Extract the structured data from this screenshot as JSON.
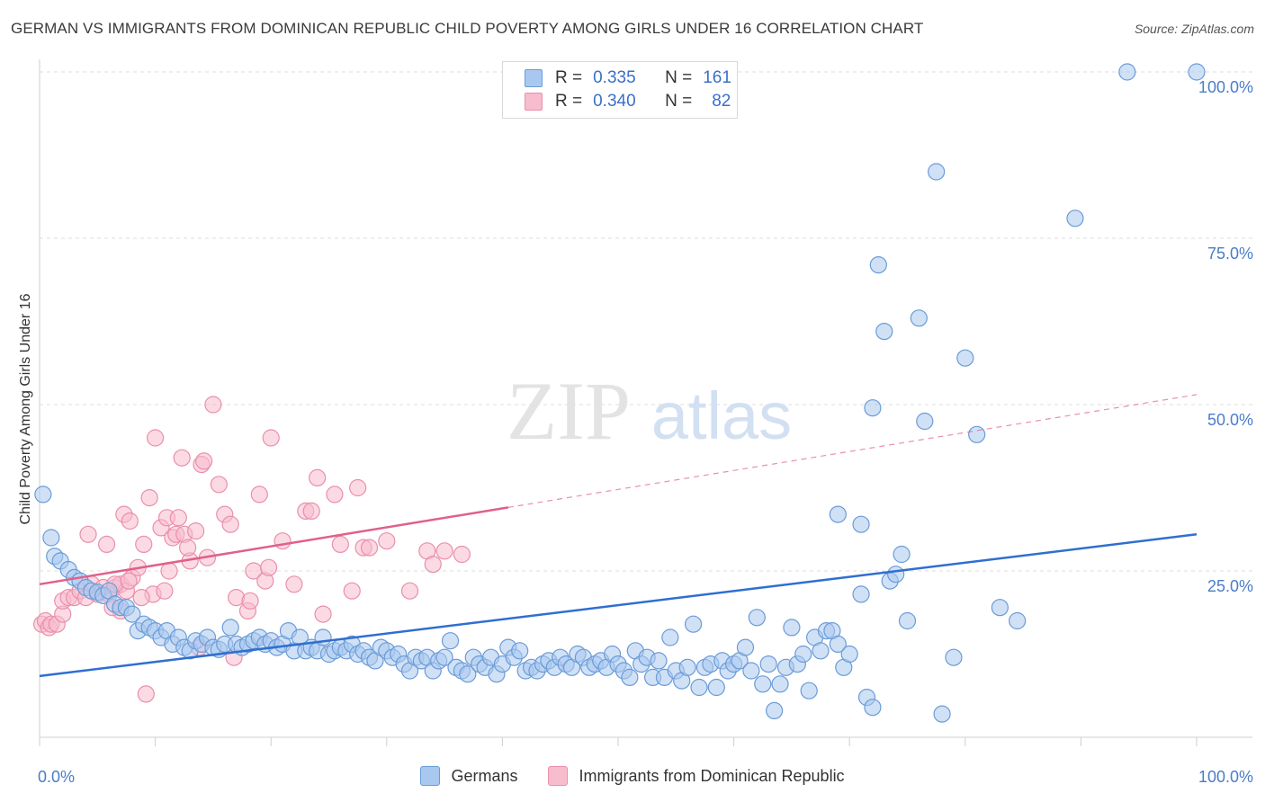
{
  "title": "GERMAN VS IMMIGRANTS FROM DOMINICAN REPUBLIC CHILD POVERTY AMONG GIRLS UNDER 16 CORRELATION CHART",
  "source": "Source: ZipAtlas.com",
  "watermark": {
    "zip": "ZIP",
    "atlas": "atlas"
  },
  "legend": {
    "r_label": "R =",
    "n_label": "N =",
    "series": [
      {
        "r": "0.335",
        "n": "161"
      },
      {
        "r": "0.340",
        "n": "82"
      }
    ]
  },
  "bottom_legend": [
    "Germans",
    "Immigrants from Dominican Republic"
  ],
  "colors": {
    "blue_fill": "#a9c8ef",
    "blue_stroke": "#6a9bd8",
    "blue_line": "#2f6fd0",
    "pink_fill": "#f7bccd",
    "pink_stroke": "#ea8fab",
    "pink_line": "#e0608a",
    "axis_label": "#4a7cc9"
  },
  "chart_data": {
    "type": "scatter",
    "title": "GERMAN VS IMMIGRANTS FROM DOMINICAN REPUBLIC CHILD POVERTY AMONG GIRLS UNDER 16 CORRELATION CHART",
    "xlabel": "",
    "ylabel": "Child Poverty Among Girls Under 16",
    "xlim": [
      0,
      100
    ],
    "ylim": [
      0,
      100
    ],
    "x_tick_labels": [
      "0.0%",
      "100.0%"
    ],
    "y_tick_labels": [
      "25.0%",
      "50.0%",
      "75.0%",
      "100.0%"
    ],
    "y_ticks": [
      25,
      50,
      75,
      100
    ],
    "legend_position": "top-center",
    "grid": true,
    "series": [
      {
        "name": "Germans",
        "color": "#6a9bd8",
        "trend": {
          "x": [
            0,
            100
          ],
          "y": [
            9.2,
            30.5
          ],
          "solid_until": 100
        },
        "points": [
          [
            0.3,
            36.5
          ],
          [
            1,
            30
          ],
          [
            1.3,
            27.2
          ],
          [
            1.8,
            26.5
          ],
          [
            2.5,
            25.2
          ],
          [
            3,
            24
          ],
          [
            3.5,
            23.5
          ],
          [
            4,
            22.5
          ],
          [
            4.5,
            22
          ],
          [
            5,
            21.8
          ],
          [
            5.5,
            21.3
          ],
          [
            6,
            22
          ],
          [
            6.5,
            20
          ],
          [
            7,
            19.5
          ],
          [
            7.5,
            19.5
          ],
          [
            8,
            18.5
          ],
          [
            8.5,
            16
          ],
          [
            9,
            17
          ],
          [
            9.5,
            16.5
          ],
          [
            10,
            16
          ],
          [
            10.5,
            15
          ],
          [
            11,
            16
          ],
          [
            11.5,
            14
          ],
          [
            12,
            15
          ],
          [
            12.5,
            13.5
          ],
          [
            13,
            13
          ],
          [
            13.5,
            14.5
          ],
          [
            14,
            14
          ],
          [
            14.5,
            15
          ],
          [
            15,
            13.5
          ],
          [
            15.5,
            13.2
          ],
          [
            16,
            14
          ],
          [
            16.5,
            16.5
          ],
          [
            17,
            14
          ],
          [
            17.5,
            13.5
          ],
          [
            18,
            14
          ],
          [
            18.5,
            14.5
          ],
          [
            19,
            15
          ],
          [
            19.5,
            14
          ],
          [
            20,
            14.5
          ],
          [
            20.5,
            13.5
          ],
          [
            21,
            14
          ],
          [
            21.5,
            16
          ],
          [
            22,
            13
          ],
          [
            22.5,
            15
          ],
          [
            23,
            13
          ],
          [
            23.5,
            13.5
          ],
          [
            24,
            13
          ],
          [
            24.5,
            15
          ],
          [
            25,
            12.5
          ],
          [
            25.5,
            13
          ],
          [
            26,
            13.5
          ],
          [
            26.5,
            13
          ],
          [
            27,
            14
          ],
          [
            27.5,
            12.5
          ],
          [
            28,
            13
          ],
          [
            28.5,
            12
          ],
          [
            29,
            11.5
          ],
          [
            29.5,
            13.5
          ],
          [
            30,
            13
          ],
          [
            30.5,
            12
          ],
          [
            31,
            12.5
          ],
          [
            31.5,
            11
          ],
          [
            32,
            10
          ],
          [
            32.5,
            12
          ],
          [
            33,
            11.5
          ],
          [
            33.5,
            12
          ],
          [
            34,
            10
          ],
          [
            34.5,
            11.5
          ],
          [
            35,
            12
          ],
          [
            35.5,
            14.5
          ],
          [
            36,
            10.5
          ],
          [
            36.5,
            10
          ],
          [
            37,
            9.5
          ],
          [
            37.5,
            12
          ],
          [
            38,
            11
          ],
          [
            38.5,
            10.5
          ],
          [
            39,
            12
          ],
          [
            39.5,
            9.5
          ],
          [
            40,
            11
          ],
          [
            40.5,
            13.5
          ],
          [
            41,
            12
          ],
          [
            41.5,
            13
          ],
          [
            42,
            10
          ],
          [
            42.5,
            10.5
          ],
          [
            43,
            10
          ],
          [
            43.5,
            11
          ],
          [
            44,
            11.5
          ],
          [
            44.5,
            10.5
          ],
          [
            45,
            12
          ],
          [
            45.5,
            11
          ],
          [
            46,
            10.5
          ],
          [
            46.5,
            12.5
          ],
          [
            47,
            12
          ],
          [
            47.5,
            10.5
          ],
          [
            48,
            11
          ],
          [
            48.5,
            11.5
          ],
          [
            49,
            10.5
          ],
          [
            49.5,
            12.5
          ],
          [
            50,
            11
          ],
          [
            50.5,
            10
          ],
          [
            51,
            9
          ],
          [
            51.5,
            13
          ],
          [
            52,
            11
          ],
          [
            52.5,
            12
          ],
          [
            53,
            9
          ],
          [
            53.5,
            11.5
          ],
          [
            54,
            9
          ],
          [
            54.5,
            15
          ],
          [
            55,
            10
          ],
          [
            55.5,
            8.5
          ],
          [
            56,
            10.5
          ],
          [
            56.5,
            17
          ],
          [
            57,
            7.5
          ],
          [
            57.5,
            10.5
          ],
          [
            58,
            11
          ],
          [
            58.5,
            7.5
          ],
          [
            59,
            11.5
          ],
          [
            59.5,
            10
          ],
          [
            60,
            11
          ],
          [
            60.5,
            11.5
          ],
          [
            61,
            13.5
          ],
          [
            61.5,
            10
          ],
          [
            62,
            18
          ],
          [
            62.5,
            8
          ],
          [
            63,
            11
          ],
          [
            63.5,
            4
          ],
          [
            64,
            8
          ],
          [
            64.5,
            10.5
          ],
          [
            65,
            16.5
          ],
          [
            65.5,
            11
          ],
          [
            66,
            12.5
          ],
          [
            66.5,
            7
          ],
          [
            67,
            15
          ],
          [
            67.5,
            13
          ],
          [
            68,
            16
          ],
          [
            68.5,
            16
          ],
          [
            69,
            14
          ],
          [
            69.5,
            10.5
          ],
          [
            70,
            12.5
          ],
          [
            69,
            33.5
          ],
          [
            71,
            32
          ],
          [
            71,
            21.5
          ],
          [
            71.5,
            6
          ],
          [
            72,
            4.5
          ],
          [
            72.5,
            71
          ],
          [
            73,
            61
          ],
          [
            73.5,
            23.5
          ],
          [
            72,
            49.5
          ],
          [
            74,
            24.5
          ],
          [
            74.5,
            27.5
          ],
          [
            75,
            17.5
          ],
          [
            76,
            63
          ],
          [
            76.5,
            47.5
          ],
          [
            77.5,
            85
          ],
          [
            78,
            3.5
          ],
          [
            79,
            12
          ],
          [
            80,
            57
          ],
          [
            81,
            45.5
          ],
          [
            83,
            19.5
          ],
          [
            84.5,
            17.5
          ],
          [
            89.5,
            78
          ],
          [
            94,
            100
          ],
          [
            100,
            100
          ]
        ]
      },
      {
        "name": "Immigrants from Dominican Republic",
        "color": "#ea8fab",
        "trend": {
          "x": [
            0,
            100
          ],
          "y": [
            23,
            51.5
          ],
          "solid_until": 40.5
        },
        "points": [
          [
            0.2,
            17
          ],
          [
            0.5,
            17.5
          ],
          [
            0.8,
            16.5
          ],
          [
            1,
            17
          ],
          [
            1.5,
            17
          ],
          [
            2,
            18.5
          ],
          [
            2,
            20.5
          ],
          [
            2.5,
            21
          ],
          [
            3,
            21
          ],
          [
            3.5,
            22
          ],
          [
            4,
            21
          ],
          [
            4.5,
            23
          ],
          [
            5,
            21.5
          ],
          [
            5.5,
            22.5
          ],
          [
            6,
            21.5
          ],
          [
            6.5,
            22.5
          ],
          [
            7,
            19
          ],
          [
            7,
            23
          ],
          [
            7.5,
            22
          ],
          [
            8,
            24
          ],
          [
            4.2,
            30.5
          ],
          [
            5.8,
            29
          ],
          [
            6.5,
            23
          ],
          [
            7.3,
            33.5
          ],
          [
            7.8,
            32.5
          ],
          [
            8.5,
            25.5
          ],
          [
            9,
            29
          ],
          [
            9.5,
            36
          ],
          [
            9.8,
            21.5
          ],
          [
            10,
            45
          ],
          [
            10.5,
            31.5
          ],
          [
            11,
            33
          ],
          [
            11.2,
            25
          ],
          [
            11.5,
            30
          ],
          [
            11.8,
            30.5
          ],
          [
            12,
            33
          ],
          [
            12.3,
            42
          ],
          [
            12.5,
            30.5
          ],
          [
            13,
            26.5
          ],
          [
            13.5,
            31
          ],
          [
            14,
            41
          ],
          [
            14.5,
            27
          ],
          [
            14.2,
            41.5
          ],
          [
            15,
            50
          ],
          [
            15.5,
            38
          ],
          [
            16,
            33.5
          ],
          [
            16.5,
            32
          ],
          [
            17,
            21
          ],
          [
            18,
            19
          ],
          [
            18.5,
            25
          ],
          [
            19,
            36.5
          ],
          [
            19.5,
            23.5
          ],
          [
            20,
            45
          ],
          [
            21,
            29.5
          ],
          [
            22,
            23
          ],
          [
            23,
            34
          ],
          [
            23.5,
            34
          ],
          [
            24,
            39
          ],
          [
            24.5,
            18.5
          ],
          [
            25.5,
            36.5
          ],
          [
            26,
            29
          ],
          [
            27,
            22
          ],
          [
            27.5,
            37.5
          ],
          [
            28,
            28.5
          ],
          [
            28.5,
            28.5
          ],
          [
            30,
            29.5
          ],
          [
            32,
            22
          ],
          [
            33.5,
            28
          ],
          [
            34,
            26
          ],
          [
            35,
            28
          ],
          [
            36.5,
            27.5
          ],
          [
            6.3,
            19.5
          ],
          [
            7.7,
            23.5
          ],
          [
            8.8,
            21
          ],
          [
            9.2,
            6.5
          ],
          [
            10.8,
            22
          ],
          [
            12.8,
            28.5
          ],
          [
            13.8,
            13.5
          ],
          [
            16.8,
            12
          ],
          [
            18.2,
            20.5
          ],
          [
            19.8,
            25.5
          ]
        ]
      }
    ]
  }
}
